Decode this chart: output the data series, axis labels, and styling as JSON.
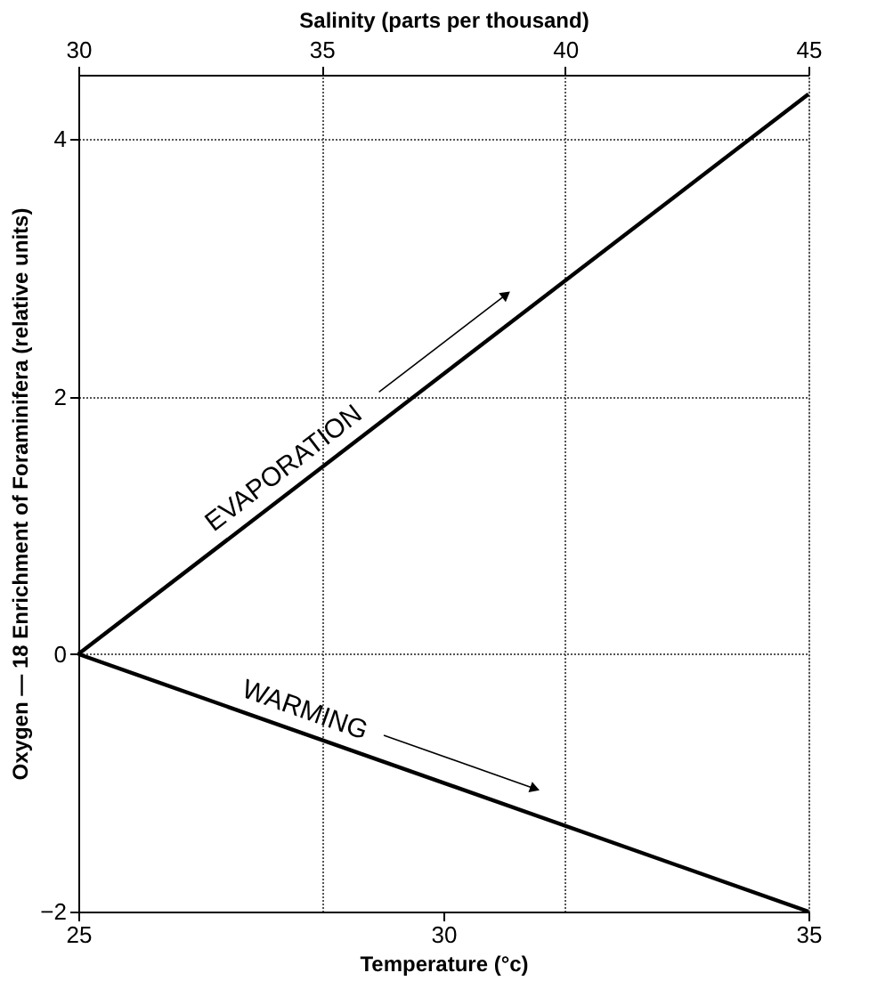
{
  "chart_data": {
    "type": "line",
    "xlabel": "Temperature (°c)",
    "x2label": "Salinity (parts per thousand)",
    "ylabel": "Oxygen — 18 Enrichment of Foraminifera (relative units)",
    "xlim": [
      25,
      35
    ],
    "xticks": [
      25,
      30,
      35
    ],
    "x2lim": [
      30,
      45
    ],
    "x2ticks": [
      30,
      35,
      40,
      45
    ],
    "ylim": [
      -2,
      4.5
    ],
    "yticks": [
      -2,
      0,
      2,
      4
    ],
    "grid": true,
    "line_style": "solid",
    "series": [
      {
        "color": "#000000",
        "axis": "x2",
        "x": [
          30,
          45
        ],
        "values": [
          0,
          4.35
        ]
      },
      {
        "color": "#000000",
        "x": [
          25,
          35
        ],
        "values": [
          0,
          -2
        ]
      }
    ],
    "annotations": [
      "EVAPORATION",
      "WARMING"
    ]
  }
}
